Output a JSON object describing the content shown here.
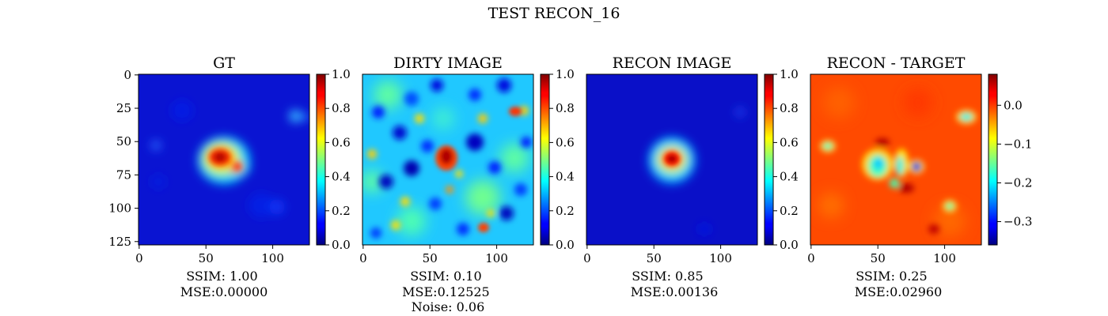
{
  "figure": {
    "title": "TEST RECON_16"
  },
  "colors": {
    "colormap": "jet",
    "axis": "#000000",
    "background": "#ffffff"
  },
  "chart_data": [
    {
      "type": "heatmap",
      "title": "GT",
      "image_size": 128,
      "xticks": [
        0,
        50,
        100
      ],
      "yticks": [
        0,
        25,
        50,
        75,
        100,
        125
      ],
      "show_yticks": true,
      "colorbar": {
        "range": [
          0.0,
          1.0
        ],
        "ticks": [
          0.0,
          0.2,
          0.4,
          0.6,
          0.8,
          1.0
        ],
        "tick_labels": [
          "0.0",
          "0.2",
          "0.4",
          "0.6",
          "0.8",
          "1.0"
        ]
      },
      "caption": [
        "SSIM: 1.00",
        "MSE:0.00000"
      ]
    },
    {
      "type": "heatmap",
      "title": "DIRTY IMAGE",
      "image_size": 128,
      "xticks": [
        0,
        50,
        100
      ],
      "show_yticks": false,
      "colorbar": {
        "range": [
          0.0,
          1.0
        ],
        "ticks": [
          0.0,
          0.2,
          0.4,
          0.6,
          0.8,
          1.0
        ],
        "tick_labels": [
          "0.0",
          "0.2",
          "0.4",
          "0.6",
          "0.8",
          "1.0"
        ]
      },
      "caption": [
        "SSIM: 0.10",
        "MSE:0.12525",
        "Noise: 0.06"
      ]
    },
    {
      "type": "heatmap",
      "title": "RECON IMAGE",
      "image_size": 128,
      "xticks": [
        0,
        50,
        100
      ],
      "show_yticks": false,
      "colorbar": {
        "range": [
          0.0,
          1.0
        ],
        "ticks": [
          0.0,
          0.2,
          0.4,
          0.6,
          0.8,
          1.0
        ],
        "tick_labels": [
          "0.0",
          "0.2",
          "0.4",
          "0.6",
          "0.8",
          "1.0"
        ]
      },
      "caption": [
        "SSIM: 0.85",
        "MSE:0.00136"
      ]
    },
    {
      "type": "heatmap",
      "title": "RECON - TARGET",
      "image_size": 128,
      "xticks": [
        0,
        50,
        100
      ],
      "show_yticks": false,
      "colorbar": {
        "range": [
          -0.36,
          0.08
        ],
        "ticks": [
          0.0,
          -0.1,
          -0.2,
          -0.3
        ],
        "tick_labels": [
          "0.0",
          "−0.1",
          "−0.2",
          "−0.3"
        ]
      },
      "caption": [
        "SSIM: 0.25",
        "MSE:0.02960"
      ]
    }
  ]
}
